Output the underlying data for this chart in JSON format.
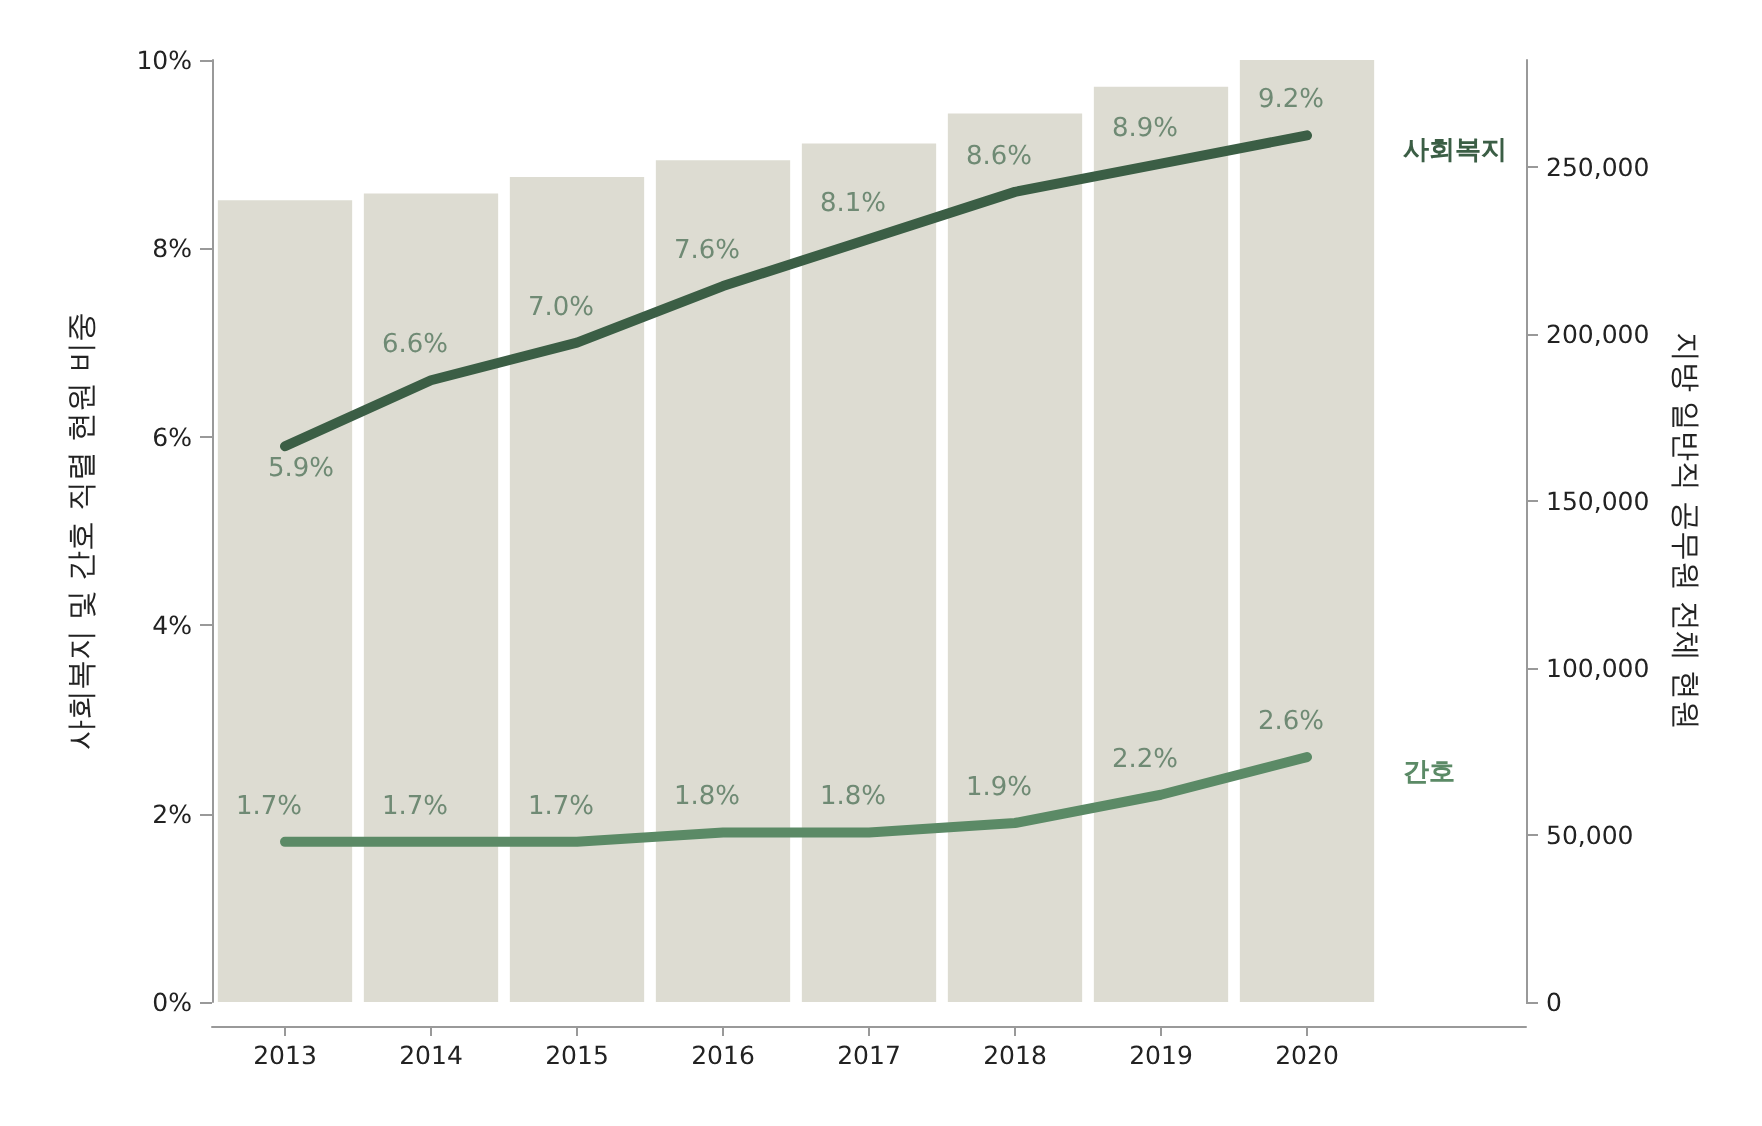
{
  "chart_data": {
    "type": "bar",
    "ylabel": "사회복지 및 간호 직렬 현원 비중",
    "y2label": "지방 일반직 공무원 전체 현원",
    "categories": [
      "2013",
      "2014",
      "2015",
      "2016",
      "2017",
      "2018",
      "2019",
      "2020"
    ],
    "ylim": [
      0,
      10
    ],
    "yticks": [
      {
        "value": 0,
        "label": "0%"
      },
      {
        "value": 2,
        "label": "2%"
      },
      {
        "value": 4,
        "label": "4%"
      },
      {
        "value": 6,
        "label": "6%"
      },
      {
        "value": 8,
        "label": "8%"
      },
      {
        "value": 10,
        "label": "10%"
      }
    ],
    "y2lim": [
      0,
      282000
    ],
    "y2ticks": [
      0,
      {
        "value": 50000,
        "label": "50,000"
      },
      {
        "value": 100000,
        "label": "100,000"
      },
      {
        "value": 150000,
        "label": "150,000"
      },
      {
        "value": 200000,
        "label": "200,000"
      },
      {
        "value": 250000,
        "label": "250,000"
      }
    ],
    "grid": false,
    "legend": false,
    "marker": "none",
    "line_style": "solid",
    "series": [
      {
        "axis": "y2",
        "color": "#dddcd2",
        "values": [
          240000,
          242000,
          247000,
          252000,
          257000,
          266000,
          274000,
          282000
        ]
      },
      {
        "type": "line",
        "name": "사회복지",
        "color": "#3b5e45",
        "values": [
          5.9,
          6.6,
          7.0,
          7.6,
          8.1,
          8.6,
          8.9,
          9.2
        ],
        "value_labels": [
          "5.9%",
          "6.6%",
          "7.0%",
          "7.6%",
          "8.1%",
          "8.6%",
          "8.9%",
          "9.2%"
        ]
      },
      {
        "type": "line",
        "name": "간호",
        "color": "#5b8a66",
        "values": [
          1.7,
          1.7,
          1.7,
          1.8,
          1.8,
          1.9,
          2.2,
          2.6
        ],
        "value_labels": [
          "1.7%",
          "1.7%",
          "1.7%",
          "1.8%",
          "1.8%",
          "1.9%",
          "2.2%",
          "2.6%"
        ]
      }
    ]
  }
}
